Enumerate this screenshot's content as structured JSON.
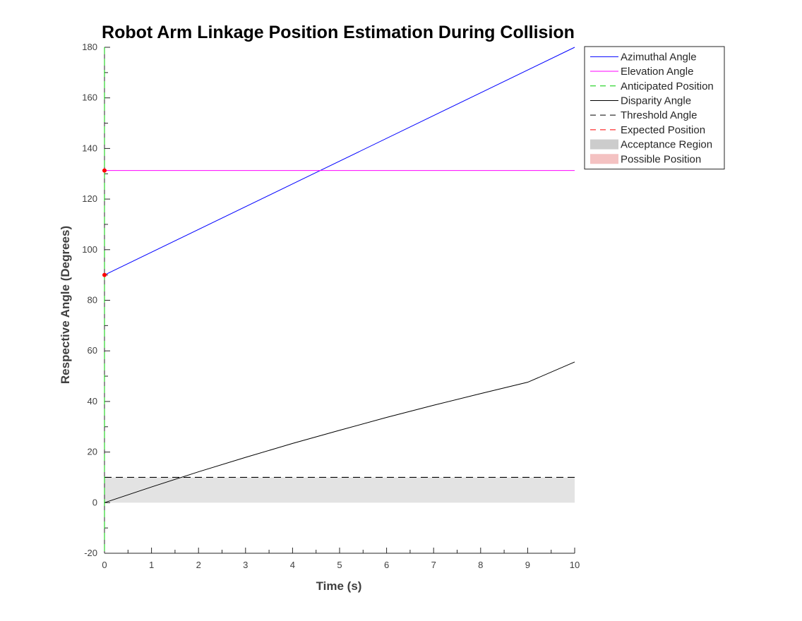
{
  "chart_data": {
    "type": "line",
    "title": "Robot Arm Linkage Position Estimation During Collision",
    "xlabel": "Time (s)",
    "ylabel": "Respective Angle (Degrees)",
    "xlim": [
      0,
      10
    ],
    "ylim": [
      -20,
      180
    ],
    "xticks": [
      0,
      1,
      2,
      3,
      4,
      5,
      6,
      7,
      8,
      9,
      10
    ],
    "xticklabels": [
      "0",
      "1",
      "2",
      "3",
      "4",
      "5",
      "6",
      "7",
      "8",
      "9",
      "10"
    ],
    "yticks_major": [
      -20,
      0,
      20,
      40,
      60,
      80,
      100,
      120,
      140,
      160,
      180
    ],
    "yticklabels": [
      "-20",
      "0",
      "20",
      "40",
      "60",
      "80",
      "100",
      "120",
      "140",
      "160",
      "180"
    ],
    "yticks_minor": [
      -10,
      10,
      30,
      50,
      70,
      90,
      110,
      130,
      150,
      170
    ],
    "xticks_minor": [
      0.5,
      1.5,
      2.5,
      3.5,
      4.5,
      5.5,
      6.5,
      7.5,
      8.5,
      9.5
    ],
    "grid": false,
    "legend_position": "outside-top-right",
    "series": [
      {
        "name": "Azimuthal Angle",
        "kind": "line",
        "color": "#0000ff",
        "dash": "solid",
        "x": [
          0,
          10
        ],
        "y": [
          90,
          180
        ]
      },
      {
        "name": "Elevation Angle",
        "kind": "line",
        "color": "#ff00ff",
        "dash": "solid",
        "x": [
          0,
          10
        ],
        "y": [
          131.3,
          131.3
        ]
      },
      {
        "name": "Anticipated Position",
        "kind": "vline",
        "color": "#00cc00",
        "dash": "dashed",
        "x": 0
      },
      {
        "name": "Disparity Angle",
        "kind": "line",
        "color": "#000000",
        "dash": "solid",
        "x": [
          0,
          1,
          2,
          3,
          4,
          5,
          6,
          7,
          8,
          9,
          10
        ],
        "y": [
          0,
          6.2,
          12.2,
          17.9,
          23.4,
          28.6,
          33.7,
          38.5,
          43.1,
          47.6,
          55.6
        ]
      },
      {
        "name": "Threshold Angle",
        "kind": "hline",
        "color": "#000000",
        "dash": "dashed",
        "y": 10,
        "x": [
          0,
          10
        ]
      },
      {
        "name": "Expected Position",
        "kind": "points",
        "color": "#ff0000",
        "dash": "dashed",
        "x": [
          0,
          0
        ],
        "y": [
          90,
          131.3
        ]
      },
      {
        "name": "Acceptance Region",
        "kind": "band",
        "color": "#cccccc",
        "x": [
          0,
          10
        ],
        "y0": 0,
        "y1": 10
      },
      {
        "name": "Possible Position",
        "kind": "patch",
        "color": "#f4c2c2"
      }
    ]
  }
}
